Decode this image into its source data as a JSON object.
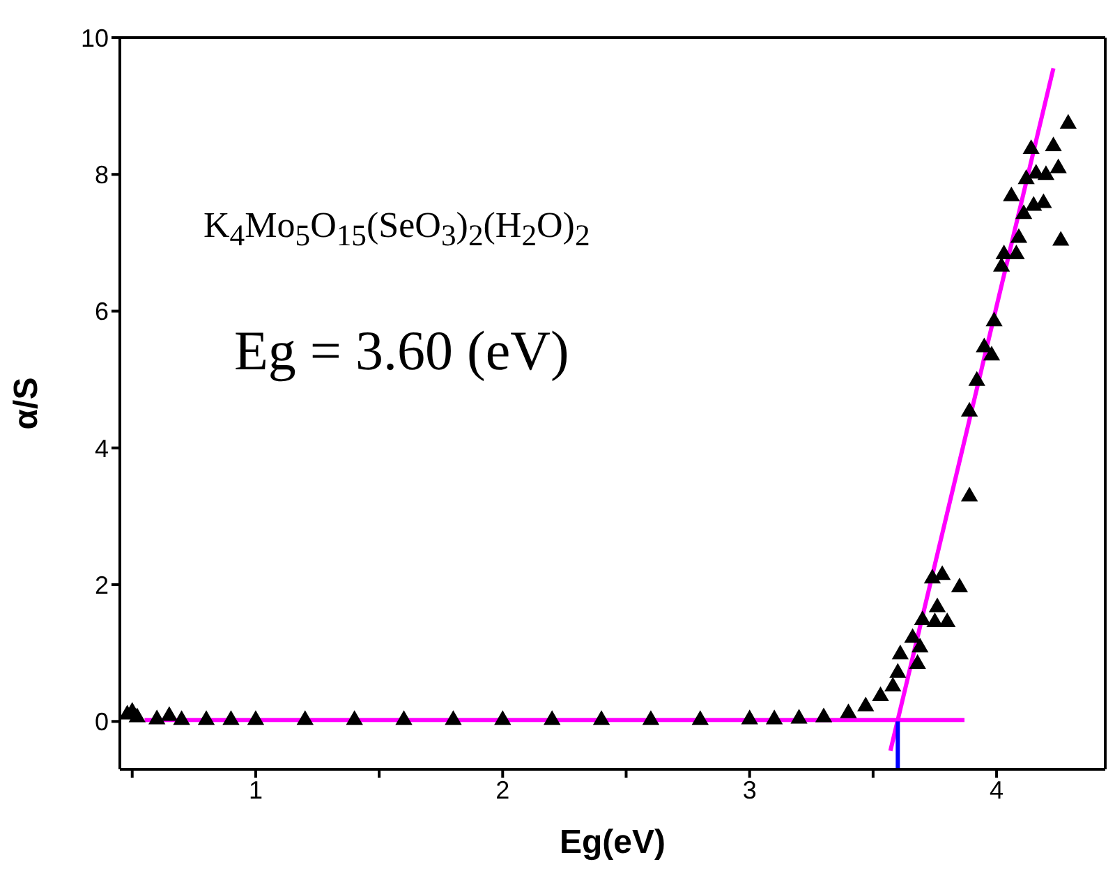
{
  "chart_data": {
    "type": "scatter",
    "xlabel": "Eg(eV)",
    "ylabel": "α/S",
    "annotations": [
      "K$_{4}$Mo$_{5}$O$_{15}$(SeO$_{3}$)$_{2}$(H$_{2}$O)$_{2}$",
      "Eg = 3.60 (eV)"
    ],
    "xlim": [
      0.45,
      4.44
    ],
    "ylim": [
      -0.7,
      10
    ],
    "xticks": [
      {
        "value": 0.5,
        "label": null
      },
      1,
      {
        "value": 1.5,
        "label": null
      },
      2,
      {
        "value": 2.5,
        "label": null
      },
      3,
      {
        "value": 3.5,
        "label": null
      },
      4
    ],
    "yticks": [
      0,
      2,
      4,
      6,
      8,
      10
    ],
    "series": [
      {
        "marker": "triangle",
        "color": "#000000",
        "x": [
          0.48,
          0.5,
          0.52,
          0.6,
          0.65,
          0.7,
          0.8,
          0.9,
          1.0,
          1.2,
          1.4,
          1.6,
          1.8,
          2.0,
          2.2,
          2.4,
          2.6,
          2.8,
          3.0,
          3.1,
          3.2,
          3.3,
          3.4,
          3.47,
          3.53,
          3.58,
          3.6,
          3.61,
          3.66,
          3.68,
          3.69,
          3.7,
          3.74,
          3.75,
          3.76,
          3.78,
          3.8,
          3.85,
          3.89,
          3.89,
          3.92,
          3.95,
          3.98,
          3.99,
          4.02,
          4.03,
          4.06,
          4.08,
          4.09,
          4.11,
          4.12,
          4.14,
          4.15,
          4.16,
          4.19,
          4.2,
          4.23,
          4.25,
          4.26,
          4.29
        ],
        "values": [
          0.1,
          0.14,
          0.06,
          0.03,
          0.08,
          0.02,
          0.02,
          0.02,
          0.02,
          0.02,
          0.02,
          0.02,
          0.02,
          0.02,
          0.02,
          0.02,
          0.02,
          0.02,
          0.03,
          0.03,
          0.04,
          0.06,
          0.12,
          0.22,
          0.37,
          0.51,
          0.71,
          0.98,
          1.22,
          0.84,
          1.08,
          1.48,
          2.09,
          1.45,
          1.67,
          2.14,
          1.45,
          1.96,
          3.29,
          4.53,
          4.98,
          5.47,
          5.35,
          5.85,
          6.65,
          6.83,
          7.68,
          6.83,
          7.07,
          7.42,
          7.93,
          8.37,
          7.54,
          8.01,
          7.58,
          7.99,
          8.41,
          8.09,
          7.03,
          8.74
        ]
      },
      {
        "type": "line",
        "line_style": "solid",
        "color": "#ff00ff",
        "x": [
          0.55,
          3.87
        ],
        "values": [
          0.02,
          0.02
        ]
      },
      {
        "type": "line",
        "line_style": "solid",
        "color": "#ff00ff",
        "x": [
          3.57,
          4.23
        ],
        "values": [
          -0.43,
          9.55
        ]
      },
      {
        "type": "line",
        "line_style": "solid",
        "color": "#0000ff",
        "x": [
          3.6,
          3.6
        ],
        "values": [
          -0.7,
          0
        ]
      }
    ]
  }
}
